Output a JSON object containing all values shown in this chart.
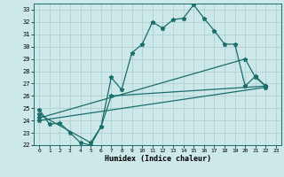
{
  "title": "",
  "xlabel": "Humidex (Indice chaleur)",
  "bg_color": "#cce8e8",
  "line_color": "#1a6e6e",
  "grid_color": "#aacccc",
  "xlim": [
    -0.5,
    23.5
  ],
  "ylim": [
    22,
    33.5
  ],
  "yticks": [
    22,
    23,
    24,
    25,
    26,
    27,
    28,
    29,
    30,
    31,
    32,
    33
  ],
  "xticks": [
    0,
    1,
    2,
    3,
    4,
    5,
    6,
    7,
    8,
    9,
    10,
    11,
    12,
    13,
    14,
    15,
    16,
    17,
    18,
    19,
    20,
    21,
    22,
    23
  ],
  "line1_x": [
    0,
    1,
    2,
    3,
    4,
    5,
    6,
    7,
    8,
    9,
    10,
    11,
    12,
    13,
    14,
    15,
    16,
    17,
    18,
    19,
    20,
    21,
    22
  ],
  "line1_y": [
    24.9,
    23.7,
    23.8,
    23.0,
    22.2,
    22.0,
    23.5,
    27.5,
    26.5,
    29.5,
    30.2,
    32.0,
    31.5,
    32.2,
    32.3,
    33.4,
    32.3,
    31.3,
    30.2,
    30.2,
    26.8,
    27.6,
    26.8
  ],
  "line2_x": [
    0,
    5,
    6,
    7,
    22
  ],
  "line2_y": [
    24.5,
    22.2,
    23.5,
    26.0,
    26.8
  ],
  "line3_x": [
    0,
    22
  ],
  "line3_y": [
    24.0,
    26.7
  ],
  "line4_x": [
    0,
    20,
    21,
    22
  ],
  "line4_y": [
    24.2,
    29.0,
    27.5,
    26.8
  ],
  "marker": "*",
  "markersize": 3.5,
  "linewidth": 0.9
}
